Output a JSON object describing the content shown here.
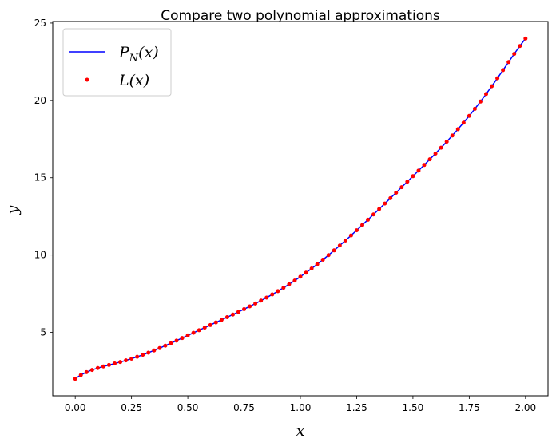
{
  "chart_data": {
    "type": "line",
    "title": "Compare two polynomial approximations",
    "xlabel": "x",
    "ylabel": "y",
    "xlim": [
      -0.1,
      2.1
    ],
    "ylim": [
      0.9,
      25.1
    ],
    "xticks": [
      "0.00",
      "0.25",
      "0.50",
      "0.75",
      "1.00",
      "1.25",
      "1.50",
      "1.75",
      "2.00"
    ],
    "yticks": [
      "5",
      "10",
      "15",
      "20",
      "25"
    ],
    "grid": false,
    "legend": {
      "position": "top-left",
      "entries": [
        {
          "label_base": "P",
          "label_sub": "N",
          "label_tail": "(x)",
          "color": "#0000ff",
          "style": "line"
        },
        {
          "label_base": "L",
          "label_sub": "",
          "label_tail": "(x)",
          "color": "#ff0000",
          "style": "dots"
        }
      ]
    },
    "x_range": [
      0,
      2
    ],
    "x": [
      0.0,
      0.25,
      0.5,
      0.75,
      1.0,
      1.25,
      1.5,
      1.75,
      2.0
    ],
    "series": [
      {
        "name": "P_N(x)",
        "type": "line",
        "color": "#0000ff",
        "values": [
          2.0,
          3.3,
          4.8,
          6.5,
          8.6,
          11.6,
          15.1,
          19.0,
          24.0
        ]
      },
      {
        "name": "L(x)",
        "type": "scatter",
        "color": "#ff0000",
        "values": [
          2.0,
          3.3,
          4.8,
          6.5,
          8.6,
          11.6,
          15.1,
          19.0,
          24.0
        ],
        "point_count": 81
      }
    ]
  }
}
